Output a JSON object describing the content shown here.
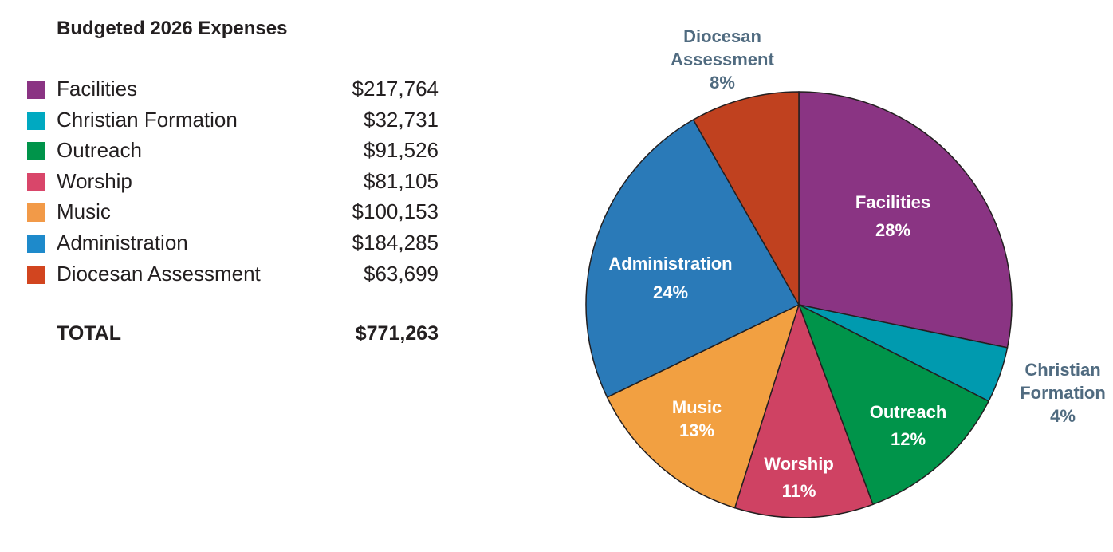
{
  "chart_data": {
    "type": "pie",
    "title": "Budgeted 2026 Expenses",
    "start_angle": "12 o'clock, clockwise",
    "categories": [
      "Facilities",
      "Christian Formation",
      "Outreach",
      "Worship",
      "Music",
      "Administration",
      "Diocesan Assessment"
    ],
    "values": [
      217764,
      32731,
      91526,
      81105,
      100153,
      184285,
      63699
    ],
    "value_labels": [
      "$217,764",
      "$32,731",
      "$91,526",
      "$81,105",
      "$100,153",
      "$184,285",
      "$63,699"
    ],
    "percent_labels": [
      "28%",
      "4%",
      "12%",
      "11%",
      "13%",
      "24%",
      "8%"
    ],
    "colors": [
      "#8a3483",
      "#009aaf",
      "#00944a",
      "#cf4263",
      "#f2a041",
      "#2a7ab8",
      "#c0411f"
    ],
    "legend_colors": [
      "#8a3483",
      "#00a9c1",
      "#00944a",
      "#d9466a",
      "#f29a48",
      "#1e8acb",
      "#d2451f"
    ],
    "outside_label_color": "#506b80",
    "total_label": "TOTAL",
    "total_value": "$771,263",
    "legend": "left"
  }
}
